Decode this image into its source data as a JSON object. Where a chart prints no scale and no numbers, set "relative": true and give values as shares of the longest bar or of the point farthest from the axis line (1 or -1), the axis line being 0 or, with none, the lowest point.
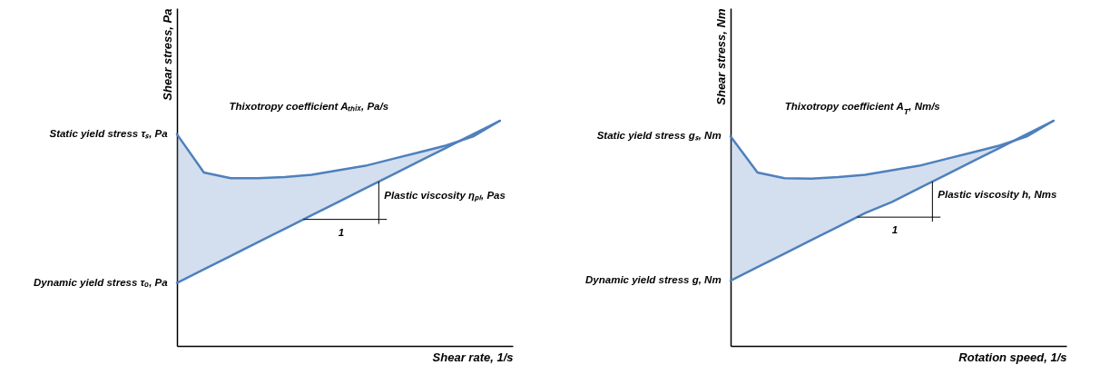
{
  "chart_data": [
    {
      "type": "line",
      "relative": true,
      "xlabel": "Shear rate, 1/s",
      "ylabel": "Shear stress, Pa",
      "categories": [
        null,
        null,
        null,
        null,
        null,
        null,
        null,
        null,
        null,
        null,
        null,
        null,
        null
      ],
      "series": [
        {
          "color": "#4f81bd",
          "values": [
            0.94,
            0.77,
            0.745,
            0.745,
            0.75,
            0.76,
            0.78,
            0.8,
            0.83,
            0.86,
            0.89,
            0.93,
            1
          ],
          "lower": [
            0.28,
            0.34,
            0.4,
            0.46,
            0.52,
            0.58,
            0.64,
            0.7,
            0.76,
            0.82,
            0.88,
            0.94,
            1
          ],
          "upper": [
            0.94,
            0.77,
            0.745,
            0.745,
            0.75,
            0.76,
            0.78,
            0.8,
            0.83,
            0.86,
            0.89,
            0.93,
            1
          ]
        },
        {
          "color": "#4f81bd",
          "values": [
            0.28,
            0.34,
            0.4,
            0.46,
            0.52,
            0.58,
            0.64,
            0.7,
            0.76,
            0.82,
            0.88,
            0.94,
            1
          ]
        }
      ],
      "annotations": [
        "Static yield stress τₛ, Pa",
        "Dynamic yield stress τₒ, Pa",
        "Thixotropy coefficient Aₜₕᵢₓ, Pa/s",
        "Plastic viscosity ηₚₗ, Pas",
        "1"
      ]
    },
    {
      "type": "line",
      "relative": true,
      "xlabel": "Rotation speed, 1/s",
      "ylabel": "Shear stress, Nm",
      "categories": [
        null,
        null,
        null,
        null,
        null,
        null,
        null,
        null,
        null,
        null,
        null,
        null,
        null
      ],
      "series": [
        {
          "color": "#4f81bd",
          "values": [
            0.93,
            0.77,
            0.745,
            0.743,
            0.75,
            0.76,
            0.78,
            0.8,
            0.83,
            0.86,
            0.89,
            0.93,
            1
          ],
          "lower": [
            0.29,
            0.35,
            0.41,
            0.47,
            0.53,
            0.59,
            0.64,
            0.7,
            0.76,
            0.82,
            0.88,
            0.94,
            1
          ],
          "upper": [
            0.93,
            0.77,
            0.745,
            0.743,
            0.75,
            0.76,
            0.78,
            0.8,
            0.83,
            0.86,
            0.89,
            0.93,
            1
          ]
        },
        {
          "color": "#4f81bd",
          "values": [
            0.29,
            0.35,
            0.41,
            0.47,
            0.53,
            0.59,
            0.64,
            0.7,
            0.76,
            0.82,
            0.88,
            0.94,
            1
          ]
        }
      ],
      "annotations": [
        "Static yield stress gₛ, Nm",
        "Dynamic yield stress g, Nm",
        "Thixotropy coefficient A$_{T}$, Nm/s",
        "Plastic viscosity h, Nms",
        "1"
      ]
    }
  ]
}
